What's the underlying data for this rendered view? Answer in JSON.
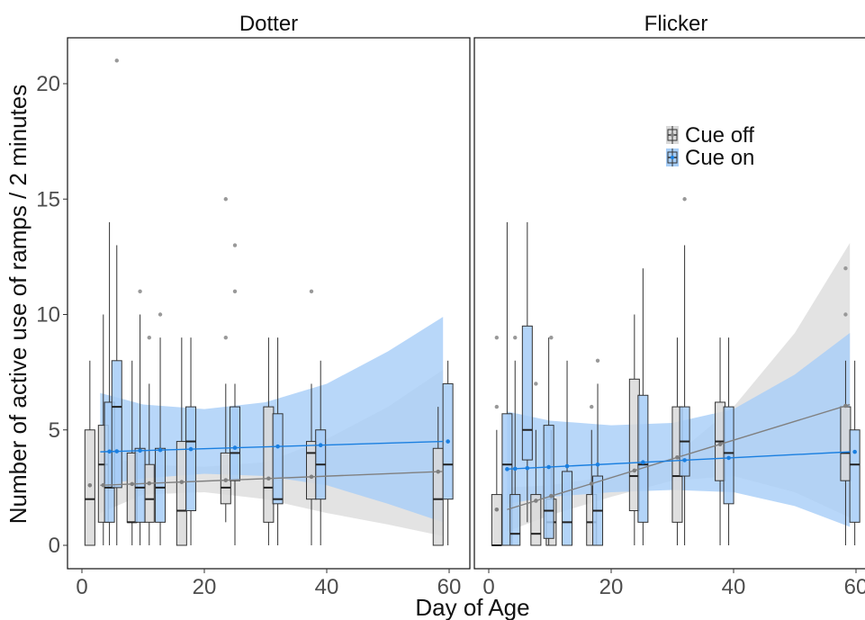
{
  "chart_data": {
    "type": "box",
    "xlabel": "Day of Age",
    "ylabel": "Number of active use of ramps / 2 minutes",
    "xlim": [
      -2,
      61
    ],
    "ylim": [
      -1,
      22
    ],
    "x_ticks": [
      0,
      20,
      40,
      60
    ],
    "x_tick_labels": [
      "0",
      "20",
      "40",
      "60"
    ],
    "y_ticks": [
      0,
      5,
      10,
      15,
      20
    ],
    "y_tick_labels": [
      "0",
      "5",
      "10",
      "15",
      "20"
    ],
    "grid": false,
    "legend_position": "top-right (in Flicker panel)",
    "legend": [
      {
        "name": "Cue off",
        "color": "#808080",
        "fill": "#d9d9d9"
      },
      {
        "name": "Cue on",
        "color": "#1a7fe0",
        "fill": "#a6cdf7"
      }
    ],
    "panels": [
      {
        "title": "Dotter",
        "series": [
          {
            "name": "Cue off",
            "boxes": [
              {
                "day": 1.3,
                "min": 0,
                "q1": 0,
                "median": 2,
                "q3": 5,
                "max": 8,
                "outliers": []
              },
              {
                "day": 3.5,
                "min": 0,
                "q1": 1,
                "median": 3.5,
                "q3": 5.2,
                "max": 10,
                "outliers": []
              },
              {
                "day": 8.2,
                "min": 0,
                "q1": 1,
                "median": 1,
                "q3": 4,
                "max": 8,
                "outliers": []
              },
              {
                "day": 11,
                "min": 0,
                "q1": 1,
                "median": 2,
                "q3": 3.5,
                "max": 7,
                "outliers": [
                  9
                ]
              },
              {
                "day": 16.3,
                "min": 0,
                "q1": 0,
                "median": 1.5,
                "q3": 4.5,
                "max": 9,
                "outliers": []
              },
              {
                "day": 23.5,
                "min": 1,
                "q1": 1.8,
                "median": 2.5,
                "q3": 4,
                "max": 7,
                "outliers": [
                  9,
                  15
                ]
              },
              {
                "day": 30.5,
                "min": 0,
                "q1": 1,
                "median": 2.5,
                "q3": 6,
                "max": 9,
                "outliers": []
              },
              {
                "day": 37.5,
                "min": 0,
                "q1": 2,
                "median": 4,
                "q3": 4.5,
                "max": 7,
                "outliers": [
                  11
                ]
              },
              {
                "day": 58.2,
                "min": 0,
                "q1": 0,
                "median": 2,
                "q3": 4.2,
                "max": 6,
                "outliers": []
              }
            ],
            "trend": {
              "x": [
                3,
                59
              ],
              "y": [
                2.6,
                3.2
              ]
            },
            "ribbon": {
              "x": [
                3,
                10,
                20,
                30,
                40,
                50,
                59
              ],
              "lower": [
                1.4,
                2.2,
                2.3,
                2.0,
                1.4,
                0.9,
                0.4
              ],
              "upper": [
                3.9,
                3.5,
                3.4,
                3.6,
                4.6,
                6.0,
                7.6
              ]
            }
          },
          {
            "name": "Cue on",
            "boxes": [
              {
                "day": 4.5,
                "min": 0,
                "q1": 1,
                "median": 2.5,
                "q3": 6.2,
                "max": 14,
                "outliers": []
              },
              {
                "day": 5.7,
                "min": 0,
                "q1": 2.5,
                "median": 6,
                "q3": 8,
                "max": 13,
                "outliers": [
                  21
                ]
              },
              {
                "day": 9.5,
                "min": 0,
                "q1": 1,
                "median": 2.5,
                "q3": 4.2,
                "max": 10,
                "outliers": [
                  11
                ]
              },
              {
                "day": 12.8,
                "min": 0,
                "q1": 1,
                "median": 2.5,
                "q3": 4.2,
                "max": 9,
                "outliers": [
                  10
                ]
              },
              {
                "day": 17.8,
                "min": 0,
                "q1": 1.5,
                "median": 4.5,
                "q3": 6,
                "max": 9,
                "outliers": []
              },
              {
                "day": 25,
                "min": 0,
                "q1": 2.8,
                "median": 4,
                "q3": 6,
                "max": 7,
                "outliers": [
                  11,
                  13
                ]
              },
              {
                "day": 32,
                "min": 0,
                "q1": 1.8,
                "median": 2,
                "q3": 5.7,
                "max": 9,
                "outliers": []
              },
              {
                "day": 39,
                "min": 0,
                "q1": 2,
                "median": 3.5,
                "q3": 5,
                "max": 8,
                "outliers": []
              },
              {
                "day": 59.8,
                "min": 0,
                "q1": 2,
                "median": 3.5,
                "q3": 7,
                "max": 8,
                "outliers": []
              }
            ],
            "trend": {
              "x": [
                3,
                59
              ],
              "y": [
                4.05,
                4.5
              ]
            },
            "ribbon": {
              "x": [
                3,
                10,
                20,
                30,
                40,
                50,
                59
              ],
              "lower": [
                2.6,
                2.9,
                3.1,
                3.0,
                2.6,
                1.8,
                1.0
              ],
              "upper": [
                6.6,
                6.1,
                5.9,
                6.2,
                7.0,
                8.4,
                9.9
              ]
            }
          }
        ]
      },
      {
        "title": "Flicker",
        "series": [
          {
            "name": "Cue off",
            "boxes": [
              {
                "day": 1.3,
                "min": 0,
                "q1": 0,
                "median": 0,
                "q3": 2.2,
                "max": 5,
                "outliers": [
                  6,
                  9
                ]
              },
              {
                "day": 7.7,
                "min": 0,
                "q1": 0,
                "median": 0.5,
                "q3": 2.2,
                "max": 5,
                "outliers": [
                  7
                ]
              },
              {
                "day": 10.2,
                "min": 0,
                "q1": 0,
                "median": 1,
                "q3": 2,
                "max": 5,
                "outliers": [
                  9
                ]
              },
              {
                "day": 16.8,
                "min": 0,
                "q1": 0,
                "median": 1,
                "q3": 2.2,
                "max": 5,
                "outliers": [
                  6
                ]
              },
              {
                "day": 23.8,
                "min": 0,
                "q1": 1.5,
                "median": 3,
                "q3": 7.2,
                "max": 10,
                "outliers": []
              },
              {
                "day": 30.8,
                "min": 0,
                "q1": 1,
                "median": 3,
                "q3": 6,
                "max": 9,
                "outliers": []
              },
              {
                "day": 37.8,
                "min": 0,
                "q1": 2.8,
                "median": 4.5,
                "q3": 6.2,
                "max": 9,
                "outliers": []
              },
              {
                "day": 58.3,
                "min": 0,
                "q1": 2.8,
                "median": 4,
                "q3": 6,
                "max": 8,
                "outliers": [
                  10,
                  12
                ]
              }
            ],
            "trend": {
              "x": [
                3,
                59
              ],
              "y": [
                1.55,
                6.1
              ]
            },
            "ribbon": {
              "x": [
                3,
                10,
                20,
                30,
                40,
                50,
                59
              ],
              "lower": [
                0.6,
                1.3,
                2.1,
                2.8,
                3.0,
                2.3,
                1.2
              ],
              "upper": [
                2.5,
                2.6,
                3.0,
                3.8,
                6.0,
                9.2,
                13.1
              ]
            }
          },
          {
            "name": "Cue on",
            "boxes": [
              {
                "day": 3,
                "min": 0,
                "q1": 0,
                "median": 3.5,
                "q3": 5.7,
                "max": 14,
                "outliers": []
              },
              {
                "day": 4.3,
                "min": 0,
                "q1": 0,
                "median": 0.5,
                "q3": 2.2,
                "max": 8,
                "outliers": [
                  9
                ]
              },
              {
                "day": 6.3,
                "min": 1,
                "q1": 3.7,
                "median": 5,
                "q3": 9.5,
                "max": 14,
                "outliers": []
              },
              {
                "day": 9.8,
                "min": 0,
                "q1": 0.3,
                "median": 1.5,
                "q3": 5.2,
                "max": 9,
                "outliers": []
              },
              {
                "day": 12.8,
                "min": 0,
                "q1": 0,
                "median": 1,
                "q3": 3.2,
                "max": 8,
                "outliers": []
              },
              {
                "day": 17.8,
                "min": 0,
                "q1": 0,
                "median": 1.5,
                "q3": 3,
                "max": 7,
                "outliers": [
                  8
                ]
              },
              {
                "day": 25.2,
                "min": 0,
                "q1": 1,
                "median": 3.5,
                "q3": 6.5,
                "max": 12,
                "outliers": []
              },
              {
                "day": 32,
                "min": 0,
                "q1": 3,
                "median": 4.5,
                "q3": 6,
                "max": 13,
                "outliers": [
                  15
                ]
              },
              {
                "day": 39.2,
                "min": 0,
                "q1": 1.8,
                "median": 4,
                "q3": 6,
                "max": 9,
                "outliers": []
              },
              {
                "day": 59.8,
                "min": 0,
                "q1": 1,
                "median": 3.5,
                "q3": 5,
                "max": 8,
                "outliers": []
              }
            ],
            "trend": {
              "x": [
                3,
                59
              ],
              "y": [
                3.3,
                4.05
              ]
            },
            "ribbon": {
              "x": [
                3,
                10,
                20,
                30,
                40,
                50,
                59
              ],
              "lower": [
                1.8,
                2.1,
                2.3,
                2.4,
                2.3,
                1.7,
                0.8
              ],
              "upper": [
                5.8,
                5.4,
                5.2,
                5.3,
                5.9,
                7.4,
                9.2
              ]
            }
          }
        ]
      }
    ]
  }
}
